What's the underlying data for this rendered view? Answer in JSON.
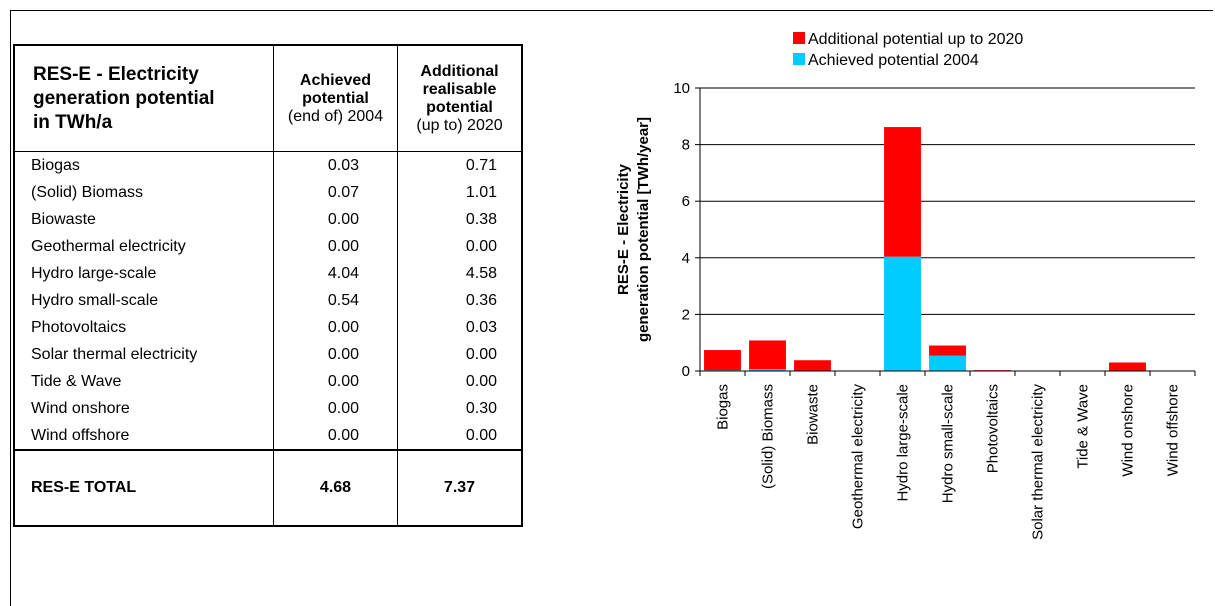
{
  "table": {
    "title_lines": [
      "RES-E - Electricity",
      "generation potential",
      "in TWh/a"
    ],
    "col1": {
      "line1": "Achieved",
      "line2": "potential",
      "line3": "(end of) 2004"
    },
    "col2": {
      "line1": "Additional",
      "line2": "realisable",
      "line3": "potential",
      "line4": "(up to) 2020"
    },
    "rows": [
      {
        "label": "Biogas",
        "achieved": "0.03",
        "additional": "0.71"
      },
      {
        "label": "(Solid) Biomass",
        "achieved": "0.07",
        "additional": "1.01"
      },
      {
        "label": "Biowaste",
        "achieved": "0.00",
        "additional": "0.38"
      },
      {
        "label": "Geothermal electricity",
        "achieved": "0.00",
        "additional": "0.00"
      },
      {
        "label": "Hydro large-scale",
        "achieved": "4.04",
        "additional": "4.58"
      },
      {
        "label": "Hydro small-scale",
        "achieved": "0.54",
        "additional": "0.36"
      },
      {
        "label": "Photovoltaics",
        "achieved": "0.00",
        "additional": "0.03"
      },
      {
        "label": "Solar thermal electricity",
        "achieved": "0.00",
        "additional": "0.00"
      },
      {
        "label": "Tide & Wave",
        "achieved": "0.00",
        "additional": "0.00"
      },
      {
        "label": "Wind onshore",
        "achieved": "0.00",
        "additional": "0.30"
      },
      {
        "label": "Wind offshore",
        "achieved": "0.00",
        "additional": "0.00"
      }
    ],
    "total": {
      "label": "RES-E TOTAL",
      "achieved": "4.68",
      "additional": "7.37"
    }
  },
  "chart_data": {
    "type": "bar",
    "stacked": true,
    "categories": [
      "Biogas",
      "(Solid) Biomass",
      "Biowaste",
      "Geothermal electricity",
      "Hydro large-scale",
      "Hydro small-scale",
      "Photovoltaics",
      "Solar thermal electricity",
      "Tide & Wave",
      "Wind onshore",
      "Wind offshore"
    ],
    "series": [
      {
        "name": "Achieved potential 2004",
        "color": "#00CCFF",
        "values": [
          0.03,
          0.07,
          0.0,
          0.0,
          4.04,
          0.54,
          0.0,
          0.0,
          0.0,
          0.0,
          0.0
        ]
      },
      {
        "name": "Additional potential up to 2020",
        "color": "#FF0000",
        "values": [
          0.71,
          1.01,
          0.38,
          0.0,
          4.58,
          0.36,
          0.03,
          0.0,
          0.0,
          0.3,
          0.0
        ]
      }
    ],
    "legend_order": [
      "Additional potential up to 2020",
      "Achieved potential 2004"
    ],
    "ylabel_lines": [
      "RES-E - Electricity",
      "generation potential [TWh/year]"
    ],
    "ylim": [
      0,
      10
    ],
    "yticks": [
      0,
      2,
      4,
      6,
      8,
      10
    ],
    "grid": true,
    "legend_position": "top"
  }
}
